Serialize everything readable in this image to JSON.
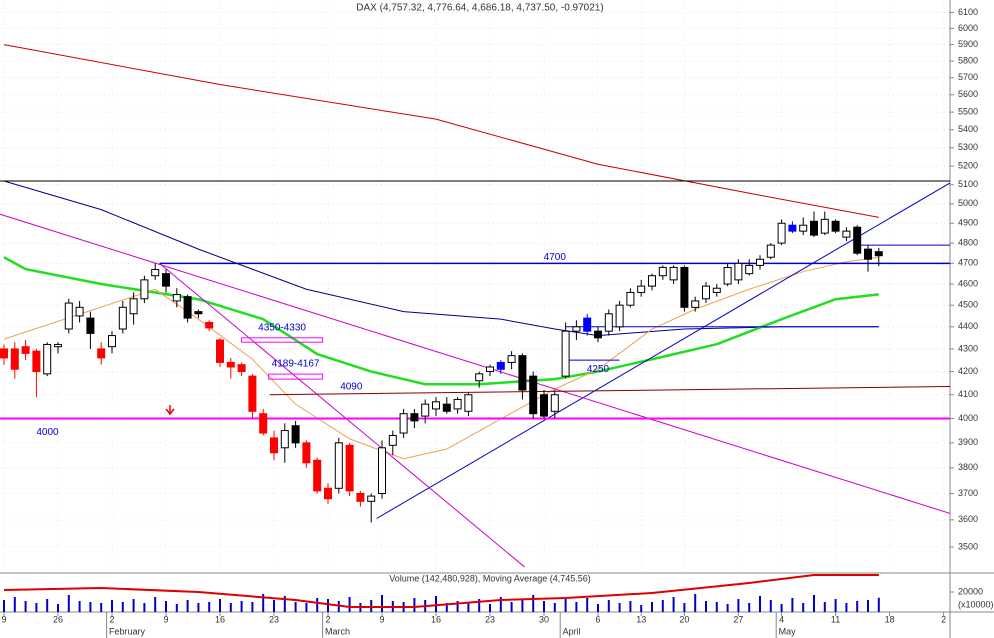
{
  "chart_data": [
    {
      "type": "candlestick",
      "title": "DAX (4,757.32, 4,776.64, 4,686.18, 4,737.50, -0.97021)",
      "categories": [
        "9",
        null,
        null,
        null,
        null,
        "26",
        null,
        null,
        null,
        null,
        "2",
        null,
        null,
        null,
        null,
        "9",
        null,
        null,
        null,
        null,
        "16",
        null,
        null,
        null,
        null,
        "23",
        null,
        null,
        null,
        null,
        "2",
        null,
        null,
        null,
        null,
        "9",
        null,
        null,
        null,
        null,
        "16",
        null,
        null,
        null,
        null,
        "23",
        null,
        null,
        null,
        null,
        "30",
        null,
        null,
        null,
        null,
        "6",
        null,
        null,
        null,
        "13",
        null,
        null,
        null,
        "20",
        null,
        null,
        null,
        null,
        "27",
        null,
        null,
        null,
        "4",
        null,
        null,
        null,
        null,
        "11",
        null,
        null,
        null,
        null,
        "18",
        null,
        null,
        null,
        null,
        "2"
      ],
      "months": [
        null,
        null,
        null,
        null,
        null,
        null,
        null,
        null,
        null,
        null,
        "February",
        null,
        null,
        null,
        null,
        null,
        null,
        null,
        null,
        null,
        null,
        null,
        null,
        null,
        null,
        null,
        null,
        null,
        null,
        null,
        "March",
        null,
        null,
        null,
        null,
        null,
        null,
        null,
        null,
        null,
        null,
        null,
        null,
        null,
        null,
        null,
        null,
        null,
        null,
        null,
        null,
        null,
        "April",
        null,
        null,
        null,
        null,
        null,
        null,
        null,
        null,
        null,
        null,
        null,
        null,
        null,
        null,
        null,
        null,
        null,
        null,
        null,
        "May",
        null,
        null,
        null,
        null,
        null,
        null,
        null,
        null,
        null,
        null,
        null,
        null,
        null,
        null,
        null
      ],
      "open": [
        4300,
        4300,
        4310,
        4290,
        4190,
        4310,
        4390,
        4450,
        4440,
        4300,
        4310,
        4390,
        4460,
        4530,
        4640,
        4650,
        4520,
        4540,
        4470,
        4420,
        4340,
        4240,
        4230,
        4180,
        4020,
        3920,
        3880,
        3970,
        3900,
        3830,
        3720,
        3720,
        3890,
        3700,
        3670,
        3700,
        3890,
        3940,
        4020,
        4010,
        4040,
        4060,
        4040,
        4030,
        4160,
        4200,
        4210,
        4240,
        4270,
        4180,
        4100,
        4030,
        4180,
        4380,
        4440,
        4380,
        4380,
        4400,
        4500,
        4560,
        4590,
        4640,
        4620,
        4680,
        4490,
        4530,
        4560,
        4600,
        4620,
        4650,
        4690,
        4730,
        4800,
        4890,
        4860,
        4910,
        4850,
        4910,
        4830,
        4880,
        4770,
        4757.32,
        null,
        null,
        null,
        null,
        null,
        null
      ],
      "high": [
        4320,
        4330,
        4340,
        4300,
        4330,
        4330,
        4530,
        4520,
        4470,
        4330,
        4380,
        4520,
        4560,
        4640,
        4700,
        4670,
        4580,
        4550,
        4480,
        4430,
        4350,
        4260,
        4240,
        4190,
        4040,
        3950,
        3980,
        3990,
        3910,
        3840,
        3740,
        3920,
        3900,
        3710,
        3700,
        3910,
        3950,
        4040,
        4040,
        4080,
        4090,
        4090,
        4090,
        4110,
        4200,
        4230,
        4250,
        4290,
        4280,
        4200,
        4120,
        4120,
        4420,
        4430,
        4460,
        4400,
        4480,
        4520,
        4580,
        4620,
        4650,
        4690,
        4690,
        4690,
        4540,
        4610,
        4600,
        4700,
        4720,
        4720,
        4740,
        4800,
        4920,
        4910,
        4930,
        4960,
        4960,
        4920,
        4880,
        4890,
        4790,
        4776.64,
        null,
        null,
        null,
        null,
        null,
        null
      ],
      "low": [
        4230,
        4170,
        4250,
        4090,
        4180,
        4280,
        4370,
        4420,
        4300,
        4230,
        4280,
        4370,
        4410,
        4510,
        4620,
        4560,
        4490,
        4420,
        4440,
        4380,
        4220,
        4170,
        4180,
        4000,
        3930,
        3830,
        3820,
        3880,
        3800,
        3700,
        3660,
        3700,
        3690,
        3650,
        3590,
        3680,
        3850,
        3920,
        3960,
        3980,
        4010,
        4020,
        4020,
        4010,
        4130,
        4180,
        4190,
        4210,
        4080,
        4000,
        4000,
        4000,
        4170,
        4340,
        4360,
        4330,
        4360,
        4380,
        4490,
        4540,
        4570,
        4620,
        4600,
        4470,
        4470,
        4510,
        4540,
        4590,
        4600,
        4640,
        4670,
        4720,
        4790,
        4850,
        4840,
        4830,
        4840,
        4850,
        4810,
        4740,
        4660,
        4686.18,
        null,
        null,
        null,
        null,
        null,
        null
      ],
      "close": [
        4260,
        4210,
        4280,
        4200,
        4320,
        4320,
        4510,
        4490,
        4370,
        4260,
        4360,
        4490,
        4530,
        4620,
        4670,
        4590,
        4550,
        4440,
        4460,
        4395,
        4240,
        4220,
        4200,
        4030,
        3940,
        3860,
        3950,
        3900,
        3820,
        3710,
        3680,
        3900,
        3710,
        3670,
        3690,
        3880,
        3930,
        4020,
        3990,
        4060,
        4070,
        4030,
        4080,
        4100,
        4190,
        4220,
        4240,
        4270,
        4120,
        4020,
        4010,
        4100,
        4380,
        4400,
        4380,
        4350,
        4460,
        4500,
        4560,
        4590,
        4640,
        4680,
        4680,
        4490,
        4520,
        4590,
        4580,
        4680,
        4700,
        4690,
        4720,
        4790,
        4900,
        4860,
        4890,
        4840,
        4920,
        4860,
        4860,
        4750,
        4720,
        4737.5,
        null,
        null,
        null,
        null,
        null,
        null
      ],
      "candle_styles": [
        "red",
        "red",
        "red",
        "red",
        "white",
        "white",
        "white",
        "white",
        "black",
        "red",
        "white",
        "white",
        "white",
        "white",
        "white",
        "black",
        "white",
        "black",
        "black",
        "red",
        "red",
        "red",
        "red",
        "red",
        "red",
        "red",
        "white",
        "black",
        "red",
        "red",
        "red",
        "white",
        "red",
        "red",
        "white",
        "white",
        "white",
        "white",
        "black",
        "white",
        "white",
        "black",
        "white",
        "white",
        "white",
        "white",
        "blue",
        "white",
        "black",
        "black",
        "black",
        "white",
        "white",
        "white",
        "blue",
        "black",
        "white",
        "white",
        "white",
        "white",
        "white",
        "white",
        "white",
        "black",
        "white",
        "white",
        "white",
        "white",
        "white",
        "white",
        "white",
        "white",
        "white",
        "blue",
        "white",
        "black",
        "white",
        "black",
        "white",
        "black",
        "black",
        "black",
        null,
        null,
        null,
        null,
        null,
        null
      ],
      "style_colors": {
        "red": "#ff0000",
        "black": "#000000",
        "white": "#ffffff",
        "blue": "#0000ff"
      },
      "log_scale": true,
      "grid": true,
      "ylim": [
        3410,
        6180
      ],
      "yticks": [
        3500,
        3600,
        3700,
        3800,
        3900,
        4000,
        4100,
        4200,
        4300,
        4400,
        4500,
        4600,
        4700,
        4800,
        4900,
        5000,
        5100,
        5200,
        5300,
        5400,
        5500,
        5600,
        5700,
        5800,
        5900,
        6000,
        6100
      ],
      "lines": [
        {
          "color": "#cc0000",
          "x": [
            0,
            20,
            40,
            55,
            70,
            81
          ],
          "values": [
            5900,
            5660,
            5460,
            5210,
            5045,
            4930
          ]
        },
        {
          "color": "#00008b",
          "x": [
            0,
            9,
            18,
            28,
            37,
            46,
            51,
            55,
            63,
            72,
            81
          ],
          "values": [
            5120,
            4970,
            4770,
            4575,
            4470,
            4435,
            4390,
            4360,
            4390,
            4400,
            4400
          ]
        },
        {
          "color": "#22dd22",
          "width": 2.5,
          "x": [
            0,
            2,
            9,
            18,
            24,
            29,
            34,
            39,
            44,
            51,
            55,
            60,
            66,
            72,
            77,
            81
          ],
          "values": [
            4730,
            4672,
            4600,
            4528,
            4435,
            4277,
            4200,
            4145,
            4145,
            4167,
            4200,
            4254,
            4321,
            4435,
            4528,
            4551
          ]
        },
        {
          "color": "#f0a050",
          "x": [
            0,
            14,
            18,
            23,
            27,
            32,
            37,
            41,
            46,
            51,
            55,
            60,
            64,
            69,
            74,
            78,
            81
          ],
          "values": [
            4344,
            4575,
            4435,
            4254,
            4060,
            3916,
            3836,
            3875,
            3998,
            4124,
            4210,
            4389,
            4481,
            4575,
            4660,
            4708,
            4730
          ]
        },
        {
          "color": "#0000cc",
          "x": [
            34.5,
            87.6
          ],
          "values": [
            3605,
            5110
          ]
        },
        {
          "color": "#cc00cc",
          "x": [
            -0.4,
            87.6
          ],
          "values": [
            4947,
            3624
          ]
        },
        {
          "color": "#cc00cc",
          "x": [
            14.4,
            48.2
          ],
          "values": [
            4700,
            3428
          ]
        },
        {
          "color": "#000000",
          "x": [
            -0.4,
            87.6
          ],
          "values": [
            5120,
            5120
          ]
        },
        {
          "color": "#0000cc",
          "width": 1.5,
          "x": [
            14.4,
            87.6
          ],
          "values": [
            4700,
            4700
          ],
          "label": "4700"
        },
        {
          "color": "#ff00ff",
          "width": 2,
          "x": [
            -0.4,
            87.6
          ],
          "values": [
            4000,
            4000
          ],
          "label": "4000"
        },
        {
          "color": "#800000",
          "x": [
            24.6,
            87.6
          ],
          "values": [
            4100,
            4135
          ],
          "label": "4090"
        },
        {
          "color": "#0000cc",
          "x": [
            52,
            81
          ],
          "values": [
            4400,
            4400
          ]
        },
        {
          "color": "#0000cc",
          "x": [
            79,
            87.6
          ],
          "values": [
            4790,
            4790
          ]
        },
        {
          "color": "#0000cc",
          "x": [
            52,
            57
          ],
          "values": [
            4250,
            4250
          ],
          "label": "4250"
        }
      ],
      "zones": [
        {
          "label": "4350-4330",
          "high": 4350,
          "low": 4330,
          "x": [
            22,
            29.5
          ]
        },
        {
          "label": "4189-4167",
          "high": 4189,
          "low": 4167,
          "x": [
            24.5,
            29.5
          ]
        }
      ]
    },
    {
      "type": "bar",
      "title": "Volume (142,480,928), Moving Average (4,745.56)",
      "color": "#0000cc",
      "values": [
        12000,
        15000,
        11000,
        9000,
        13000,
        8000,
        17000,
        11000,
        10000,
        9000,
        12000,
        10000,
        13000,
        9000,
        15000,
        11000,
        8000,
        12000,
        9000,
        10000,
        13000,
        9000,
        11000,
        10000,
        18000,
        12000,
        16000,
        10000,
        9000,
        14000,
        13000,
        11000,
        15000,
        9000,
        12000,
        17000,
        11000,
        10000,
        14000,
        12000,
        16000,
        9000,
        11000,
        10000,
        13000,
        8000,
        15000,
        10000,
        12000,
        17000,
        11000,
        9000,
        13000,
        10000,
        14000,
        8000,
        12000,
        9000,
        11000,
        7000,
        10000,
        12000,
        15000,
        9000,
        18000,
        11000,
        10000,
        8000,
        13000,
        9000,
        16000,
        12000,
        8000,
        14000,
        9000,
        17000,
        10000,
        13000,
        9000,
        11000,
        12000,
        14248,
        null,
        null,
        null,
        null,
        null,
        null
      ],
      "moving_average": {
        "color": "#dd0000",
        "x": [
          0,
          9,
          18,
          27,
          32,
          38,
          46,
          52,
          60,
          69,
          75,
          81
        ],
        "values": [
          22000,
          24000,
          20000,
          12000,
          5000,
          5000,
          12000,
          14000,
          19000,
          29000,
          37000,
          37000
        ]
      },
      "ylim": [
        0,
        39000
      ],
      "yticks": [
        20000
      ],
      "unit_label": "(x10000)"
    }
  ]
}
